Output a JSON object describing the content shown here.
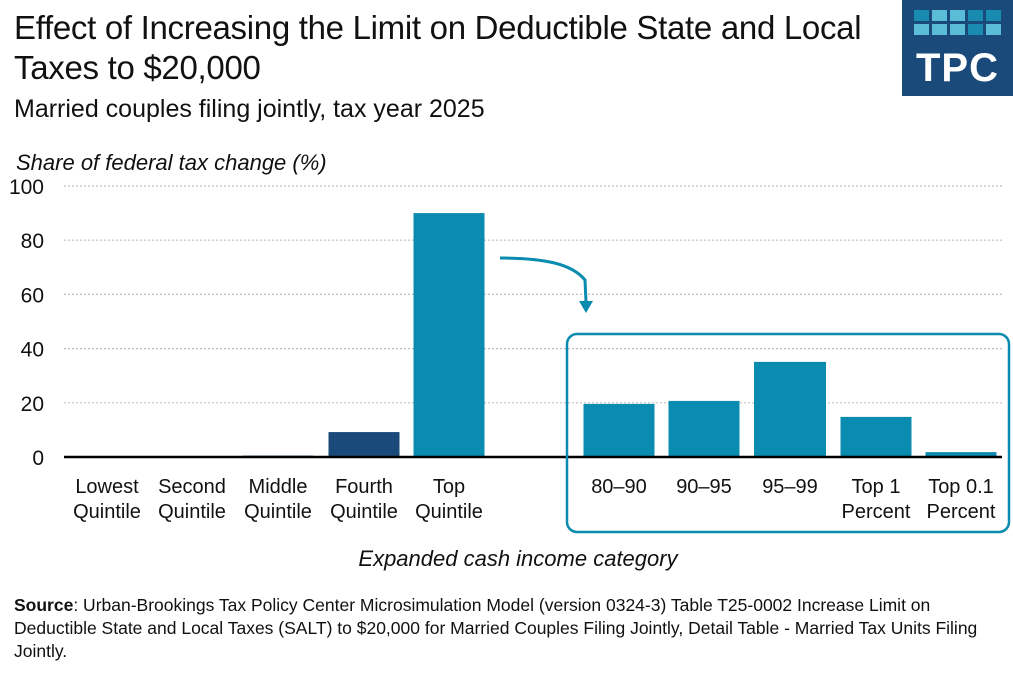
{
  "header": {
    "title": "Effect of Increasing the Limit on Deductible State and Local Taxes to $20,000",
    "subtitle": "Married couples filing jointly, tax year 2025"
  },
  "logo": {
    "text": "TPC",
    "bg_color": "#1a4a7a",
    "tile_colors": [
      "#1a8bb0",
      "#5bbcd8",
      "#5bbcd8",
      "#1a8bb0",
      "#1a8bb0",
      "#5bbcd8",
      "#5bbcd8",
      "#5bbcd8",
      "#1a8bb0",
      "#5bbcd8"
    ]
  },
  "footer": {
    "source_label": "Source",
    "source_text": ": Urban-Brookings Tax Policy Center Microsimulation Model (version 0324-3) Table T25-0002 Increase Limit on Deductible State and Local Taxes (SALT) to $20,000 for Married Couples Filing Jointly, Detail Table - Married Tax Units Filing Jointly."
  },
  "chart_data": {
    "type": "bar",
    "title": "Effect of Increasing the Limit on Deductible State and Local Taxes to $20,000",
    "subtitle": "Married couples filing jointly, tax year 2025",
    "ylabel": "Share of federal tax change (%)",
    "xlabel": "Expanded cash income category",
    "ylim": [
      0,
      100
    ],
    "yticks": [
      0,
      20,
      40,
      60,
      80,
      100
    ],
    "grid": true,
    "colors": {
      "teal": "#0a8bb0",
      "navy": "#1a4a7a",
      "axis": "#000000",
      "grid": "#bfbfbf"
    },
    "categories": [
      {
        "label": [
          "Lowest",
          "Quintile"
        ],
        "value": 0.0,
        "color": "navy",
        "group": "quintiles"
      },
      {
        "label": [
          "Second",
          "Quintile"
        ],
        "value": 0.0,
        "color": "navy",
        "group": "quintiles"
      },
      {
        "label": [
          "Middle",
          "Quintile"
        ],
        "value": 0.5,
        "color": "navy",
        "group": "quintiles"
      },
      {
        "label": [
          "Fourth",
          "Quintile"
        ],
        "value": 9.2,
        "color": "navy",
        "group": "quintiles"
      },
      {
        "label": [
          "Top",
          "Quintile"
        ],
        "value": 90.0,
        "color": "teal",
        "group": "quintiles"
      },
      {
        "label": [
          "80–90",
          ""
        ],
        "value": 19.6,
        "color": "teal",
        "group": "top-breakdown"
      },
      {
        "label": [
          "90–95",
          ""
        ],
        "value": 20.7,
        "color": "teal",
        "group": "top-breakdown"
      },
      {
        "label": [
          "95–99",
          ""
        ],
        "value": 35.1,
        "color": "teal",
        "group": "top-breakdown"
      },
      {
        "label": [
          "Top 1",
          "Percent"
        ],
        "value": 14.8,
        "color": "teal",
        "group": "top-breakdown"
      },
      {
        "label": [
          "Top 0.1",
          "Percent"
        ],
        "value": 1.8,
        "color": "teal",
        "group": "top-breakdown"
      }
    ],
    "annotations": [
      "arrow from Top Quintile to breakdown box",
      "rounded box around top-quintile breakdown"
    ]
  }
}
